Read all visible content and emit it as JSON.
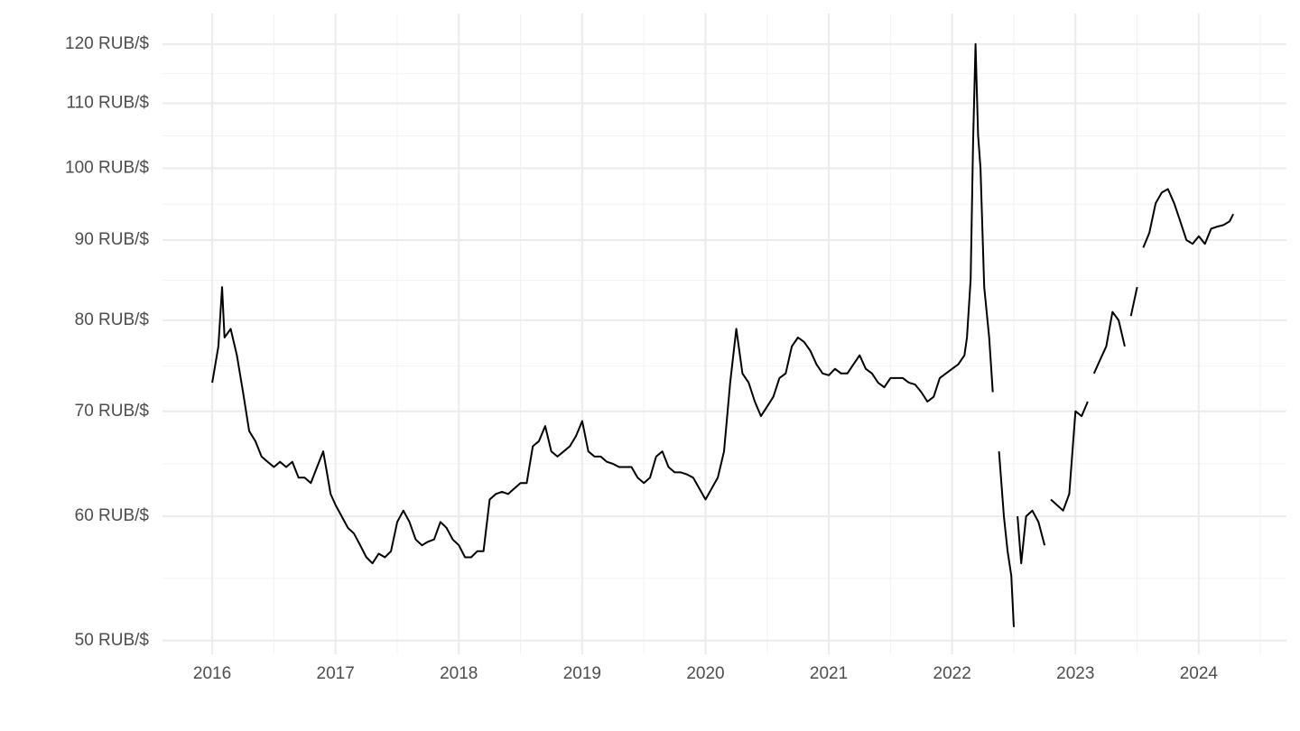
{
  "chart_data": {
    "type": "line",
    "color": "#000000",
    "y_log_scale": true,
    "grid": true,
    "xlim": [
      2015.597,
      2024.711
    ],
    "xticks": [
      2016,
      2017,
      2018,
      2019,
      2020,
      2021,
      2022,
      2023,
      2024
    ],
    "ylim": [
      49,
      125.5
    ],
    "yticks": [
      {
        "value": 50,
        "label": "50 RUB/$"
      },
      {
        "value": 60,
        "label": "60 RUB/$"
      },
      {
        "value": 70,
        "label": "70 RUB/$"
      },
      {
        "value": 80,
        "label": "80 RUB/$"
      },
      {
        "value": 90,
        "label": "90 RUB/$"
      },
      {
        "value": 100,
        "label": "100 RUB/$"
      },
      {
        "value": 110,
        "label": "110 RUB/$"
      },
      {
        "value": 120,
        "label": "120 RUB/$"
      }
    ],
    "x": [
      2016.0,
      2016.05,
      2016.08,
      2016.1,
      2016.15,
      2016.2,
      2016.25,
      2016.3,
      2016.35,
      2016.4,
      2016.45,
      2016.5,
      2016.55,
      2016.6,
      2016.65,
      2016.7,
      2016.75,
      2016.8,
      2016.85,
      2016.9,
      2016.93,
      2016.96,
      2017.0,
      2017.05,
      2017.1,
      2017.15,
      2017.2,
      2017.25,
      2017.3,
      2017.35,
      2017.4,
      2017.45,
      2017.5,
      2017.55,
      2017.6,
      2017.65,
      2017.7,
      2017.75,
      2017.8,
      2017.85,
      2017.9,
      2017.95,
      2018.0,
      2018.05,
      2018.1,
      2018.15,
      2018.2,
      2018.25,
      2018.3,
      2018.35,
      2018.4,
      2018.45,
      2018.5,
      2018.55,
      2018.6,
      2018.65,
      2018.7,
      2018.75,
      2018.8,
      2018.85,
      2018.9,
      2018.95,
      2019.0,
      2019.05,
      2019.1,
      2019.15,
      2019.2,
      2019.25,
      2019.3,
      2019.35,
      2019.4,
      2019.45,
      2019.5,
      2019.55,
      2019.6,
      2019.65,
      2019.7,
      2019.75,
      2019.8,
      2019.85,
      2019.9,
      2019.95,
      2020.0,
      2020.05,
      2020.1,
      2020.15,
      2020.2,
      2020.25,
      2020.3,
      2020.35,
      2020.4,
      2020.45,
      2020.5,
      2020.55,
      2020.6,
      2020.65,
      2020.7,
      2020.75,
      2020.8,
      2020.85,
      2020.9,
      2020.95,
      2021.0,
      2021.05,
      2021.1,
      2021.15,
      2021.2,
      2021.25,
      2021.3,
      2021.35,
      2021.4,
      2021.45,
      2021.5,
      2021.55,
      2021.6,
      2021.65,
      2021.7,
      2021.75,
      2021.8,
      2021.85,
      2021.9,
      2021.95,
      2022.0,
      2022.05,
      2022.1,
      2022.12,
      2022.15,
      2022.17,
      2022.19,
      2022.21,
      2022.23,
      2022.26,
      2022.3,
      2022.33,
      2022.355,
      2022.38,
      2022.42,
      2022.45,
      2022.48,
      2022.5,
      2022.515,
      2022.53,
      2022.56,
      2022.6,
      2022.65,
      2022.7,
      2022.75,
      2022.775,
      2022.8,
      2022.85,
      2022.9,
      2022.95,
      2023.0,
      2023.05,
      2023.1,
      2023.125,
      2023.15,
      2023.2,
      2023.25,
      2023.3,
      2023.35,
      2023.4,
      2023.425,
      2023.45,
      2023.5,
      2023.525,
      2023.55,
      2023.6,
      2023.65,
      2023.7,
      2023.75,
      2023.8,
      2023.85,
      2023.9,
      2023.95,
      2024.0,
      2024.05,
      2024.1,
      2024.15,
      2024.2,
      2024.25,
      2024.28
    ],
    "values": [
      73,
      77,
      84,
      78,
      79,
      76,
      72,
      68,
      67,
      65.5,
      65,
      64.5,
      65,
      64.5,
      65,
      63.5,
      63.5,
      63,
      64.5,
      66,
      64,
      62,
      61,
      60,
      59,
      58.5,
      57.5,
      56.5,
      56,
      56.8,
      56.5,
      57,
      59.5,
      60.5,
      59.5,
      58,
      57.5,
      57.8,
      58,
      59.5,
      59,
      58,
      57.5,
      56.5,
      56.5,
      57,
      57,
      61.5,
      62,
      62.2,
      62,
      62.5,
      63,
      63,
      66.5,
      67,
      68.5,
      66,
      65.5,
      66,
      66.5,
      67.5,
      69,
      66,
      65.5,
      65.5,
      65,
      64.8,
      64.5,
      64.5,
      64.5,
      63.5,
      63,
      63.5,
      65.5,
      66,
      64.5,
      64,
      64,
      63.8,
      63.5,
      62.5,
      61.5,
      62.5,
      63.5,
      66,
      73,
      79,
      74,
      73,
      71,
      69.5,
      70.5,
      71.5,
      73.5,
      74,
      77,
      78,
      77.5,
      76.5,
      75,
      74,
      73.8,
      74.5,
      74,
      74,
      75,
      76,
      74.5,
      74,
      73,
      72.5,
      73.5,
      73.5,
      73.5,
      73,
      72.8,
      72,
      71,
      71.5,
      73.5,
      74,
      74.5,
      75,
      76,
      78,
      85,
      104,
      120,
      105,
      100,
      84,
      78,
      72,
      null,
      66,
      60,
      57,
      55,
      51,
      null,
      60,
      56,
      60,
      60.5,
      59.5,
      57.5,
      null,
      61.5,
      61,
      60.5,
      62,
      70,
      69.5,
      71,
      null,
      74,
      75.5,
      77,
      81,
      80,
      77,
      null,
      80.5,
      84,
      null,
      89,
      91,
      95,
      96.5,
      97,
      95,
      92.5,
      90,
      89.5,
      90.5,
      89.5,
      91.5,
      91.8,
      92,
      92.5,
      93.5
    ]
  }
}
